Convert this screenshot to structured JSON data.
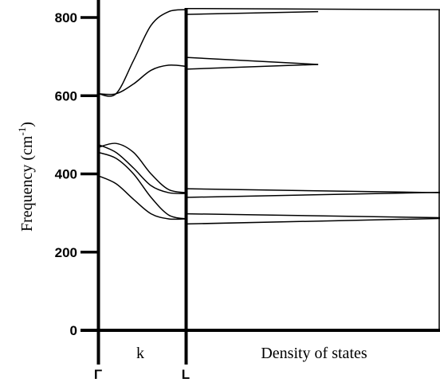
{
  "chart_data": {
    "type": "line",
    "ylabel_main": "Frequency (cm",
    "ylabel_sup": "-1",
    "ylabel_tail": ")",
    "yticks": [
      0,
      200,
      400,
      600,
      800
    ],
    "ylim": [
      0,
      820
    ],
    "dispersion": {
      "xlabel": "k",
      "start_label": "Γ",
      "end_label": "L",
      "k": [
        0,
        0.2,
        0.4,
        0.6,
        0.8,
        1.0
      ],
      "branches": [
        [
          605,
          605,
          690,
          780,
          815,
          820
        ],
        [
          605,
          605,
          630,
          665,
          678,
          675
        ],
        [
          468,
          478,
          455,
          400,
          360,
          352
        ],
        [
          475,
          455,
          415,
          370,
          352,
          350
        ],
        [
          455,
          440,
          400,
          340,
          295,
          285
        ],
        [
          395,
          375,
          335,
          298,
          285,
          285
        ]
      ]
    },
    "dos": {
      "xlabel": "Density of states",
      "lines": [
        {
          "y_start": 823,
          "y_end": 820,
          "x_end": 1.0
        },
        {
          "y_start": 808,
          "y_end": 815,
          "x_end": 0.52
        },
        {
          "y_start": 698,
          "y_end": 680,
          "x_end": 0.52
        },
        {
          "y_start": 668,
          "y_end": 680,
          "x_end": 0.52
        },
        {
          "y_start": 362,
          "y_end": 352,
          "x_end": 1.0
        },
        {
          "y_start": 340,
          "y_end": 353,
          "x_end": 1.0
        },
        {
          "y_start": 298,
          "y_end": 288,
          "x_end": 1.0
        },
        {
          "y_start": 272,
          "y_end": 286,
          "x_end": 1.0
        }
      ]
    }
  }
}
